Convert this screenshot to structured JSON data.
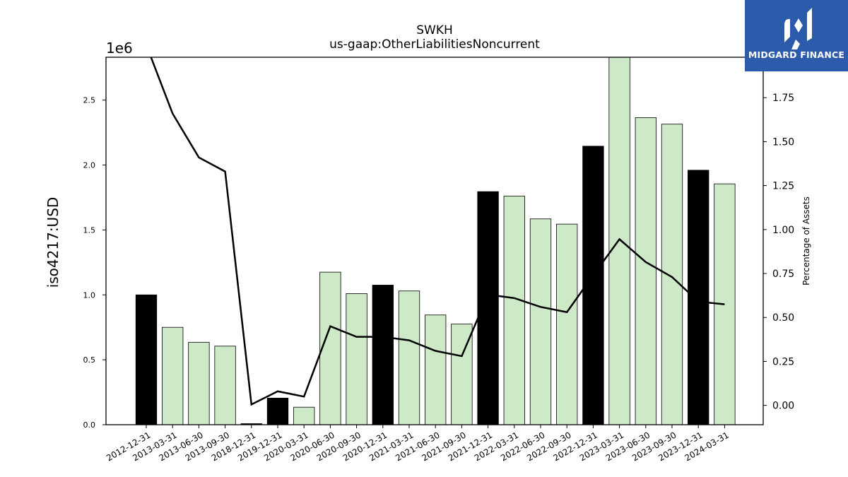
{
  "chart_data": {
    "type": "bar",
    "title": "SWKH",
    "subtitle": "us-gaap:OtherLiabilitiesNoncurrent",
    "ylabel": "iso4217:USD",
    "y2label": "Percentage of Assets",
    "y_offset_label": "1e6",
    "categories": [
      "2012-12-31",
      "2013-03-31",
      "2013-06-30",
      "2013-09-30",
      "2018-12-31",
      "2019-12-31",
      "2020-03-31",
      "2020-06-30",
      "2020-09-30",
      "2020-12-31",
      "2021-03-31",
      "2021-06-30",
      "2021-09-30",
      "2021-12-31",
      "2022-03-31",
      "2022-06-30",
      "2022-09-30",
      "2022-12-31",
      "2023-03-31",
      "2023-06-30",
      "2023-09-30",
      "2023-12-31",
      "2024-03-31"
    ],
    "series": [
      {
        "values": [
          1.0,
          0.75,
          0.635,
          0.605,
          0.008,
          0.205,
          0.135,
          1.175,
          1.01,
          1.075,
          1.03,
          0.845,
          0.775,
          1.795,
          1.76,
          1.585,
          1.545,
          2.145,
          2.87,
          2.365,
          2.315,
          1.96,
          1.855
        ],
        "annual": [
          true,
          false,
          false,
          false,
          true,
          true,
          false,
          false,
          false,
          true,
          false,
          false,
          false,
          true,
          false,
          false,
          false,
          true,
          false,
          false,
          false,
          true,
          false
        ]
      },
      {
        "axis": "right",
        "values": [
          2.05,
          1.66,
          1.41,
          1.33,
          0.005,
          0.08,
          0.05,
          0.45,
          0.39,
          0.39,
          0.37,
          0.31,
          0.28,
          0.63,
          0.61,
          0.56,
          0.53,
          0.74,
          0.945,
          0.815,
          0.73,
          0.59,
          0.575
        ]
      }
    ],
    "ylim": [
      0,
      2.83
    ],
    "y2lim": [
      -0.11,
      1.98
    ],
    "yticks": [
      "0.0",
      "0.5",
      "1.0",
      "1.5",
      "2.0",
      "2.5"
    ],
    "y2ticks": [
      "0.00",
      "0.25",
      "0.50",
      "0.75",
      "1.00",
      "1.25",
      "1.50",
      "1.75"
    ],
    "colors": {
      "annual_bar": "#000000",
      "quarter_bar": "#cde9c8",
      "bar_edge": "#000000",
      "line": "#000000"
    },
    "grid": false
  },
  "logo": {
    "text": "MIDGARD FINANCE",
    "background": "#2d5bab"
  }
}
